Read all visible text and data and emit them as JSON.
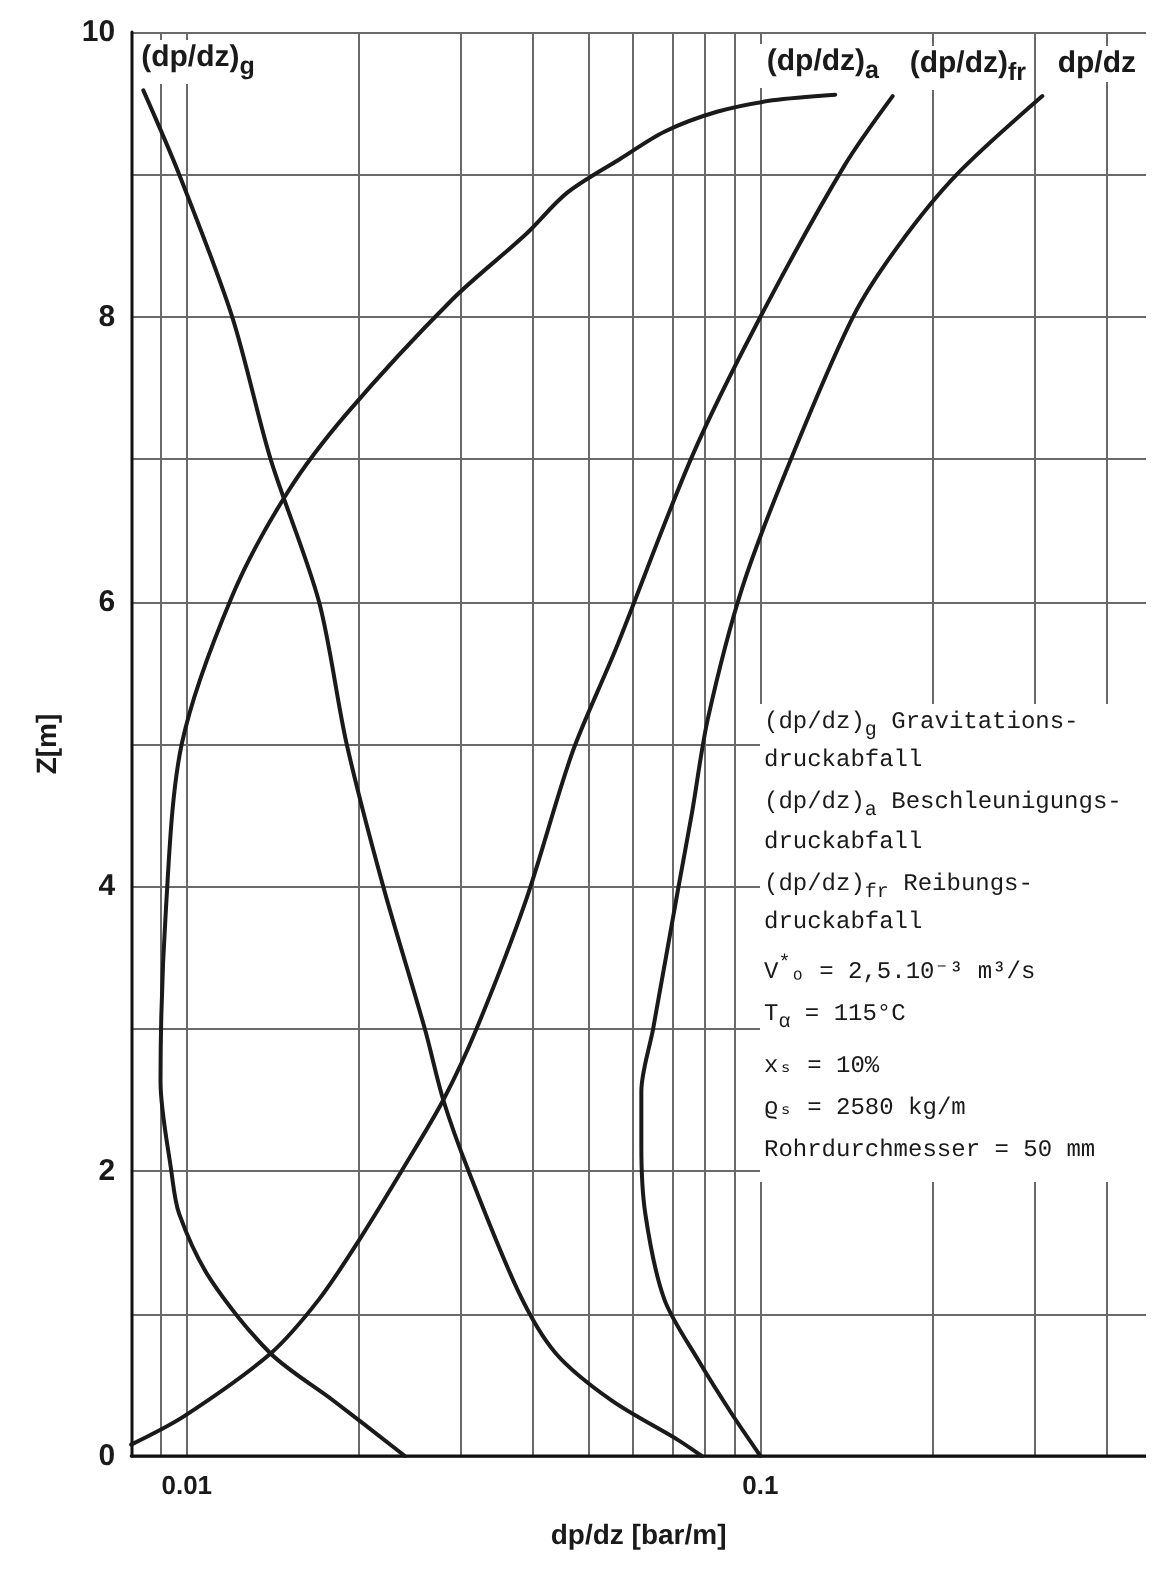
{
  "chart_data": {
    "type": "line",
    "xlabel": "dp/dz [bar/m]",
    "ylabel": "Z[m]",
    "annotations": [
      "(dp/dz)$_{g}$ Gravitations-\ndruckabfall",
      "(dp/dz)$_{a}$ Beschleunigungs-\ndruckabfall",
      "(dp/dz)$_{fr}$ Reibungs-\ndruckabfall",
      "V$^{*}$ₒ = 2,5.10⁻³ m³/s",
      "T$_{α}$ = 115°C",
      "xₛ = 10%",
      "ϱₛ = 2580 kg/m",
      "Rohrdurchmesser = 50 mm"
    ],
    "series": [
      {
        "name": "(dp/dz)$_{g}$",
        "color": "#1a1a1a",
        "x": [
          0.079,
          0.072,
          0.055,
          0.044,
          0.038,
          0.031,
          0.028,
          0.026,
          0.022,
          0.019,
          0.017,
          0.014,
          0.012,
          0.0097,
          0.0084
        ],
        "values": [
          0,
          0.11,
          0.39,
          0.72,
          1.14,
          2,
          2.5,
          3,
          4,
          5,
          6,
          7,
          8,
          9,
          9.59
        ]
      },
      {
        "name": "(dp/dz)$_{a}$",
        "color": "#1a1a1a",
        "x": [
          0.024,
          0.018,
          0.014,
          0.011,
          0.0097,
          0.0094,
          0.009,
          0.0092,
          0.0098,
          0.012,
          0.015,
          0.019,
          0.029,
          0.039,
          0.046,
          0.057,
          0.068,
          0.084,
          0.105,
          0.135
        ],
        "values": [
          0,
          0.39,
          0.72,
          1.24,
          1.7,
          2,
          2.63,
          3.85,
          5,
          6.04,
          6.77,
          7.32,
          8.12,
          8.58,
          8.87,
          9.11,
          9.3,
          9.44,
          9.52,
          9.56
        ]
      },
      {
        "name": "(dp/dz)$_{fr}$",
        "color": "#1a1a1a",
        "x": [
          0.008,
          0.0099,
          0.014,
          0.017,
          0.02,
          0.024,
          0.028,
          0.032,
          0.039,
          0.047,
          0.056,
          0.076,
          0.1,
          0.14,
          0.17
        ],
        "values": [
          0.08,
          0.28,
          0.72,
          1.1,
          1.52,
          2.04,
          2.5,
          3,
          3.9,
          4.94,
          5.67,
          7.02,
          8,
          9.06,
          9.55
        ]
      },
      {
        "name": "dp/dz",
        "color": "#1a1a1a",
        "x": [
          0.1,
          0.089,
          0.078,
          0.068,
          0.063,
          0.062,
          0.062,
          0.065,
          0.072,
          0.076,
          0.081,
          0.093,
          0.113,
          0.145,
          0.174,
          0.22,
          0.31
        ],
        "values": [
          0,
          0.3,
          0.67,
          1.1,
          1.7,
          2.18,
          2.56,
          3,
          4,
          4.52,
          5.18,
          6.1,
          7,
          8,
          8.5,
          9,
          9.55
        ]
      }
    ],
    "xlim": [
      0.008,
      0.47
    ],
    "ylim": [
      0,
      10
    ],
    "xticks": [
      {
        "value": 0.009,
        "label": null
      },
      0.01,
      {
        "value": 0.02,
        "label": null
      },
      {
        "value": 0.03,
        "label": null
      },
      {
        "value": 0.04,
        "label": null
      },
      {
        "value": 0.05,
        "label": null
      },
      {
        "value": 0.06,
        "label": null
      },
      {
        "value": 0.07,
        "label": null
      },
      {
        "value": 0.08,
        "label": null
      },
      {
        "value": 0.09,
        "label": null
      },
      0.1,
      {
        "value": 0.2,
        "label": null
      },
      {
        "value": 0.3,
        "label": null
      },
      {
        "value": 0.4,
        "label": null
      }
    ],
    "yticks": [
      0,
      {
        "value": 1,
        "label": null
      },
      2,
      {
        "value": 3,
        "label": null
      },
      4,
      {
        "value": 5,
        "label": null
      },
      6,
      {
        "value": 7,
        "label": null
      },
      8,
      {
        "value": 9,
        "label": null
      },
      10
    ],
    "log": "x",
    "grid": true
  }
}
